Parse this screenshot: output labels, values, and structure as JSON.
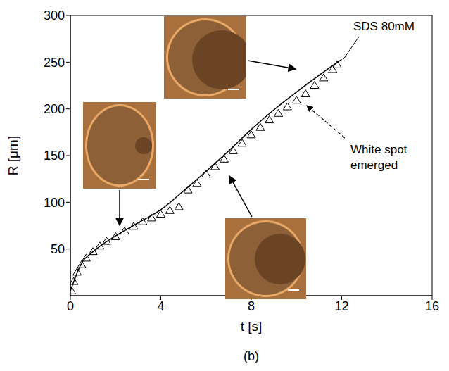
{
  "chart_data": {
    "type": "scatter",
    "title": "(b)",
    "x_label": "t [s]",
    "y_label": "R [μm]",
    "xlim": [
      0,
      16
    ],
    "xticks": [
      0,
      4,
      8,
      12,
      16
    ],
    "ylim": [
      0,
      300
    ],
    "yticks": [
      50,
      100,
      150,
      200,
      250,
      300
    ],
    "grid": false,
    "annotations": [
      "SDS 80mM",
      "White spot emerged"
    ],
    "series": [
      {
        "type": "scatter",
        "marker": "triangle",
        "color": "#000000",
        "x": [
          0.05,
          0.15,
          0.3,
          0.5,
          0.7,
          1,
          1.3,
          1.6,
          2,
          2.4,
          2.8,
          3.2,
          3.6,
          4,
          4.4,
          4.8,
          5.2,
          5.6,
          6,
          6.4,
          6.8,
          7.2,
          7.6,
          8,
          8.4,
          8.8,
          9.2,
          9.6,
          10,
          10.4,
          10.8,
          11.2,
          11.6,
          11.8
        ],
        "values": [
          5,
          15,
          25,
          33,
          40,
          47,
          53,
          58,
          63,
          69,
          74,
          79,
          83,
          87,
          91,
          95,
          113,
          120,
          130,
          138,
          146,
          155,
          163,
          172,
          180,
          188,
          195,
          202,
          209,
          216,
          225,
          233,
          242,
          247
        ]
      },
      {
        "type": "line",
        "line_style": "solid",
        "color": "#000000",
        "x": [
          0,
          0.5,
          1,
          2,
          3,
          4,
          5,
          6,
          7,
          8,
          9,
          10,
          11,
          12
        ],
        "values": [
          5,
          35,
          47,
          64,
          78,
          92,
          112,
          133,
          155,
          178,
          199,
          218,
          236,
          253
        ]
      }
    ]
  }
}
